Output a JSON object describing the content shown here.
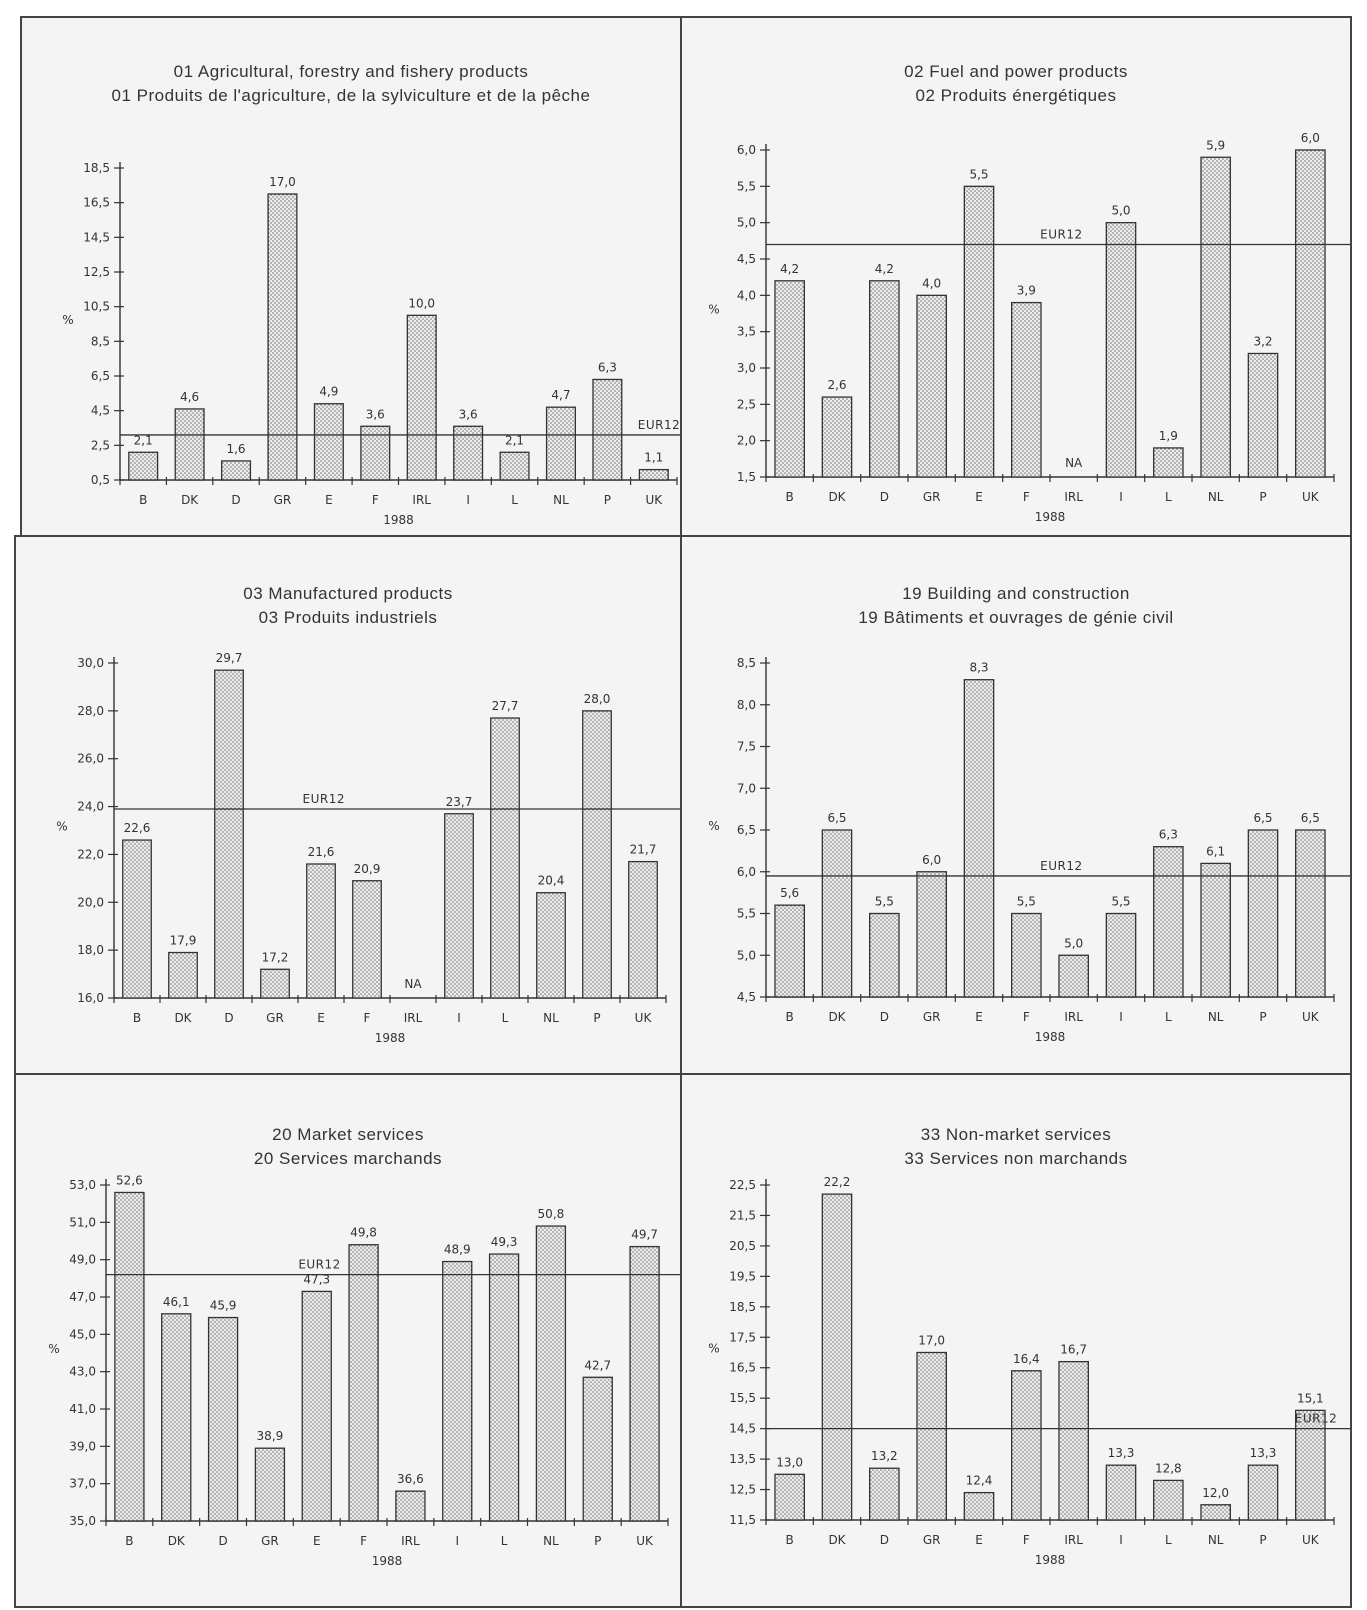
{
  "colors": {
    "bar_fill": "#ececec",
    "bar_dot": "#6a6a6a",
    "line": "#333333",
    "panel_bg": "#f4f4f4"
  },
  "chart_data": [
    {
      "type": "bar",
      "title": "01 Agricultural, forestry and fishery products",
      "subtitle": "01 Produits de l'agriculture, de la sylviculture et de la pêche",
      "xlabel": "1988",
      "ylabel": "%",
      "categories": [
        "B",
        "DK",
        "D",
        "GR",
        "E",
        "F",
        "IRL",
        "I",
        "L",
        "NL",
        "P",
        "UK"
      ],
      "values": [
        2.1,
        4.6,
        1.6,
        17.0,
        4.9,
        3.6,
        10.0,
        3.6,
        2.1,
        4.7,
        6.3,
        1.1
      ],
      "value_labels": [
        "2,1",
        "4,6",
        "1,6",
        "17,0",
        "4,9",
        "3,6",
        "10,0",
        "3,6",
        "2,1",
        "4,7",
        "6,3",
        "1,1"
      ],
      "ylim": [
        0.5,
        18.5
      ],
      "yticks": [
        0.5,
        2.5,
        4.5,
        6.5,
        8.5,
        10.5,
        12.5,
        14.5,
        16.5,
        18.5
      ],
      "ytick_labels": [
        "0,5",
        "2,5",
        "4,5",
        "6,5",
        "8,5",
        "10,5",
        "12,5",
        "14,5",
        "16,5",
        "18,5"
      ],
      "reference_line": {
        "label": "EUR12",
        "value": 3.1,
        "label_position": "right"
      }
    },
    {
      "type": "bar",
      "title": "02 Fuel and power products",
      "subtitle": "02 Produits énergétiques",
      "xlabel": "1988",
      "ylabel": "%",
      "categories": [
        "B",
        "DK",
        "D",
        "GR",
        "E",
        "F",
        "IRL",
        "I",
        "L",
        "NL",
        "P",
        "UK"
      ],
      "values": [
        4.2,
        2.6,
        4.2,
        4.0,
        5.5,
        3.9,
        null,
        5.0,
        1.9,
        5.9,
        3.2,
        6.0
      ],
      "value_labels": [
        "4,2",
        "2,6",
        "4,2",
        "4,0",
        "5,5",
        "3,9",
        "NA",
        "5,0",
        "1,9",
        "5,9",
        "3,2",
        "6,0"
      ],
      "ylim": [
        1.5,
        6.0
      ],
      "yticks": [
        1.5,
        2.0,
        2.5,
        3.0,
        3.5,
        4.0,
        4.5,
        5.0,
        5.5,
        6.0
      ],
      "ytick_labels": [
        "1,5",
        "2,0",
        "2,5",
        "3,0",
        "3,5",
        "4,0",
        "4,5",
        "5,0",
        "5,5",
        "6,0"
      ],
      "reference_line": {
        "label": "EUR12",
        "value": 4.7,
        "label_position": "center"
      }
    },
    {
      "type": "bar",
      "title": "03 Manufactured products",
      "subtitle": "03 Produits industriels",
      "xlabel": "1988",
      "ylabel": "%",
      "categories": [
        "B",
        "DK",
        "D",
        "GR",
        "E",
        "F",
        "IRL",
        "I",
        "L",
        "NL",
        "P",
        "UK"
      ],
      "values": [
        22.6,
        17.9,
        29.7,
        17.2,
        21.6,
        20.9,
        null,
        23.7,
        27.7,
        20.4,
        28.0,
        21.7
      ],
      "value_labels": [
        "22,6",
        "17,9",
        "29,7",
        "17,2",
        "21,6",
        "20,9",
        "NA",
        "23,7",
        "27,7",
        "20,4",
        "28,0",
        "21,7"
      ],
      "ylim": [
        16.0,
        30.0
      ],
      "yticks": [
        16.0,
        18.0,
        20.0,
        22.0,
        24.0,
        26.0,
        28.0,
        30.0
      ],
      "ytick_labels": [
        "16,0",
        "18,0",
        "20,0",
        "22,0",
        "24,0",
        "26,0",
        "28,0",
        "30,0"
      ],
      "reference_line": {
        "label": "EUR12",
        "value": 23.9,
        "label_position": "center-left"
      }
    },
    {
      "type": "bar",
      "title": "19 Building and construction",
      "subtitle": "19 Bâtiments et ouvrages de génie civil",
      "xlabel": "1988",
      "ylabel": "%",
      "categories": [
        "B",
        "DK",
        "D",
        "GR",
        "E",
        "F",
        "IRL",
        "I",
        "L",
        "NL",
        "P",
        "UK"
      ],
      "values": [
        5.6,
        6.5,
        5.5,
        6.0,
        8.3,
        5.5,
        5.0,
        5.5,
        6.3,
        6.1,
        6.5,
        6.5
      ],
      "value_labels": [
        "5,6",
        "6,5",
        "5,5",
        "6,0",
        "8,3",
        "5,5",
        "5,0",
        "5,5",
        "6,3",
        "6,1",
        "6,5",
        "6,5"
      ],
      "ylim": [
        4.5,
        8.5
      ],
      "yticks": [
        4.5,
        5.0,
        5.5,
        6.0,
        6.5,
        7.0,
        7.5,
        8.0,
        8.5
      ],
      "ytick_labels": [
        "4,5",
        "5,0",
        "5,5",
        "6,0",
        "6,5",
        "7,0",
        "7,5",
        "8,0",
        "8,5"
      ],
      "reference_line": {
        "label": "EUR12",
        "value": 5.95,
        "label_position": "center"
      }
    },
    {
      "type": "bar",
      "title": "20 Market services",
      "subtitle": "20 Services marchands",
      "xlabel": "1988",
      "ylabel": "%",
      "categories": [
        "B",
        "DK",
        "D",
        "GR",
        "E",
        "F",
        "IRL",
        "I",
        "L",
        "NL",
        "P",
        "UK"
      ],
      "values": [
        52.6,
        46.1,
        45.9,
        38.9,
        47.3,
        49.8,
        36.6,
        48.9,
        49.3,
        50.8,
        42.7,
        49.7
      ],
      "value_labels": [
        "52,6",
        "46,1",
        "45,9",
        "38,9",
        "47,3",
        "49,8",
        "36,6",
        "48,9",
        "49,3",
        "50,8",
        "42,7",
        "49,7"
      ],
      "ylim": [
        35.0,
        53.0
      ],
      "yticks": [
        35.0,
        37.0,
        39.0,
        41.0,
        43.0,
        45.0,
        47.0,
        49.0,
        51.0,
        53.0
      ],
      "ytick_labels": [
        "35,0",
        "37,0",
        "39,0",
        "41,0",
        "43,0",
        "45,0",
        "47,0",
        "49,0",
        "51,0",
        "53,0"
      ],
      "reference_line": {
        "label": "EUR12",
        "value": 48.2,
        "label_position": "center-left"
      }
    },
    {
      "type": "bar",
      "title": "33 Non-market services",
      "subtitle": "33 Services non marchands",
      "xlabel": "1988",
      "ylabel": "%",
      "categories": [
        "B",
        "DK",
        "D",
        "GR",
        "E",
        "F",
        "IRL",
        "I",
        "L",
        "NL",
        "P",
        "UK"
      ],
      "values": [
        13.0,
        22.2,
        13.2,
        17.0,
        12.4,
        16.4,
        16.7,
        13.3,
        12.8,
        12.0,
        13.3,
        15.1
      ],
      "value_labels": [
        "13,0",
        "22,2",
        "13,2",
        "17,0",
        "12,4",
        "16,4",
        "16,7",
        "13,3",
        "12,8",
        "12,0",
        "13,3",
        "15,1"
      ],
      "ylim": [
        11.5,
        22.5
      ],
      "yticks": [
        11.5,
        12.5,
        13.5,
        14.5,
        15.5,
        16.5,
        17.5,
        18.5,
        19.5,
        20.5,
        21.5,
        22.5
      ],
      "ytick_labels": [
        "11,5",
        "12,5",
        "13,5",
        "14,5",
        "15,5",
        "16,5",
        "17,5",
        "18,5",
        "19,5",
        "20,5",
        "21,5",
        "22,5"
      ],
      "reference_line": {
        "label": "EUR12",
        "value": 14.5,
        "label_position": "right"
      }
    }
  ]
}
